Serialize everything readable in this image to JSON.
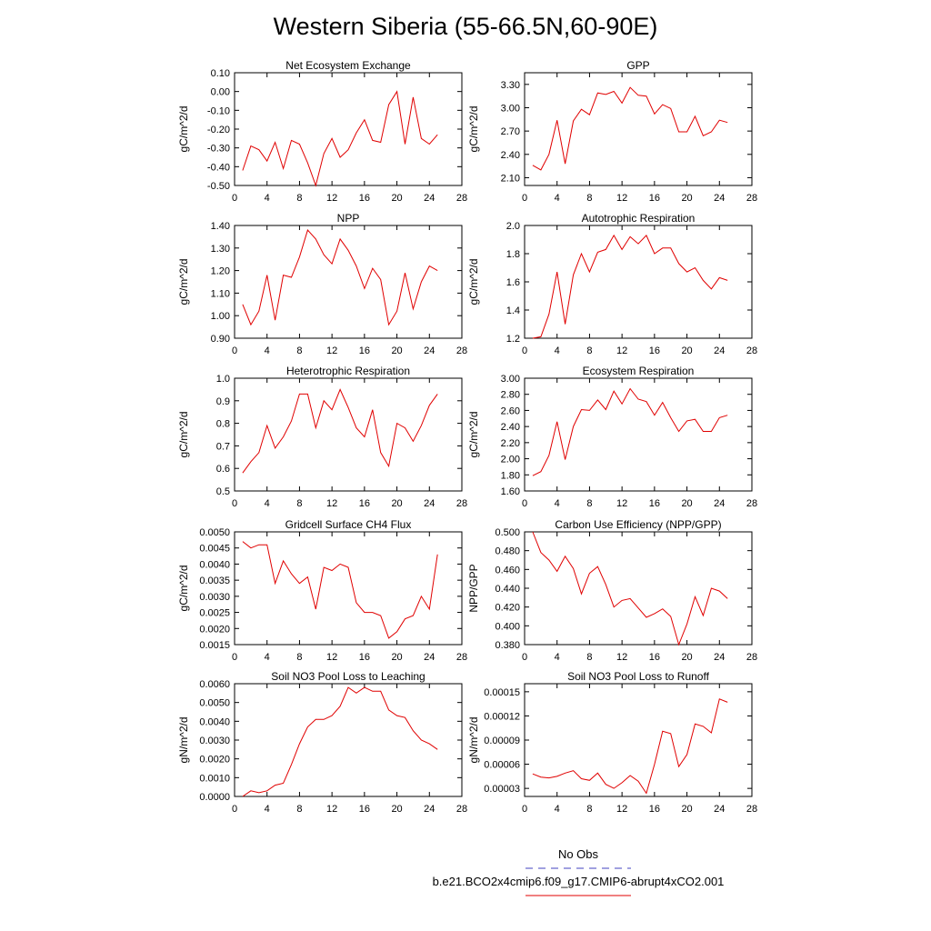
{
  "title": "Western Siberia (55-66.5N,60-90E)",
  "legend": {
    "obs_label": "No Obs",
    "obs_color": "#4040c0",
    "model_label": "b.e21.BCO2x4cmip6.f09_g17.CMIP6-abrupt4xCO2.001",
    "model_color": "#e00000"
  },
  "chart_data": [
    {
      "type": "line",
      "title": "Net Ecosystem Exchange",
      "ylabel": "gC/m^2/d",
      "xlim": [
        0,
        28
      ],
      "xticks": [
        "0",
        "4",
        "8",
        "12",
        "16",
        "20",
        "24",
        "28"
      ],
      "ylim": [
        -0.5,
        0.1
      ],
      "yticks": [
        "0.10",
        "0.00",
        "-0.10",
        "-0.20",
        "-0.30",
        "-0.40",
        "-0.50"
      ],
      "x": [
        1,
        2,
        3,
        4,
        5,
        6,
        7,
        8,
        9,
        10,
        11,
        12,
        13,
        14,
        15,
        16,
        17,
        18,
        19,
        20,
        21,
        22,
        23,
        24,
        25
      ],
      "series": [
        {
          "values": [
            -0.42,
            -0.29,
            -0.31,
            -0.37,
            -0.27,
            -0.41,
            -0.26,
            -0.28,
            -0.38,
            -0.5,
            -0.33,
            -0.25,
            -0.35,
            -0.31,
            -0.22,
            -0.15,
            -0.26,
            -0.27,
            -0.07,
            0.0,
            -0.28,
            -0.03,
            -0.25,
            -0.28,
            -0.23
          ]
        }
      ]
    },
    {
      "type": "line",
      "title": "GPP",
      "ylabel": "gC/m^2/d",
      "xlim": [
        0,
        28
      ],
      "xticks": [
        "0",
        "4",
        "8",
        "12",
        "16",
        "20",
        "24",
        "28"
      ],
      "ylim": [
        2.0,
        3.45
      ],
      "yticks": [
        "3.30",
        "3.00",
        "2.70",
        "2.40",
        "2.10"
      ],
      "x": [
        1,
        2,
        3,
        4,
        5,
        6,
        7,
        8,
        9,
        10,
        11,
        12,
        13,
        14,
        15,
        16,
        17,
        18,
        19,
        20,
        21,
        22,
        23,
        24,
        25
      ],
      "series": [
        {
          "values": [
            2.26,
            2.2,
            2.4,
            2.84,
            2.28,
            2.83,
            2.98,
            2.91,
            3.19,
            3.17,
            3.21,
            3.06,
            3.26,
            3.16,
            3.15,
            2.92,
            3.04,
            2.99,
            2.69,
            2.69,
            2.89,
            2.64,
            2.69,
            2.84,
            2.81
          ]
        }
      ]
    },
    {
      "type": "line",
      "title": "NPP",
      "ylabel": "gC/m^2/d",
      "xlim": [
        0,
        28
      ],
      "xticks": [
        "0",
        "4",
        "8",
        "12",
        "16",
        "20",
        "24",
        "28"
      ],
      "ylim": [
        0.9,
        1.4
      ],
      "yticks": [
        "1.40",
        "1.30",
        "1.20",
        "1.10",
        "1.00",
        "0.90"
      ],
      "x": [
        1,
        2,
        3,
        4,
        5,
        6,
        7,
        8,
        9,
        10,
        11,
        12,
        13,
        14,
        15,
        16,
        17,
        18,
        19,
        20,
        21,
        22,
        23,
        24,
        25
      ],
      "series": [
        {
          "values": [
            1.05,
            0.96,
            1.02,
            1.18,
            0.98,
            1.18,
            1.17,
            1.26,
            1.38,
            1.34,
            1.27,
            1.23,
            1.34,
            1.29,
            1.22,
            1.12,
            1.21,
            1.16,
            0.96,
            1.02,
            1.19,
            1.03,
            1.15,
            1.22,
            1.2
          ]
        }
      ]
    },
    {
      "type": "line",
      "title": "Autotrophic Respiration",
      "ylabel": "gC/m^2/d",
      "xlim": [
        0,
        28
      ],
      "xticks": [
        "0",
        "4",
        "8",
        "12",
        "16",
        "20",
        "24",
        "28"
      ],
      "ylim": [
        1.2,
        2.0
      ],
      "yticks": [
        "2.0",
        "1.8",
        "1.6",
        "1.4",
        "1.2"
      ],
      "x": [
        1,
        2,
        3,
        4,
        5,
        6,
        7,
        8,
        9,
        10,
        11,
        12,
        13,
        14,
        15,
        16,
        17,
        18,
        19,
        20,
        21,
        22,
        23,
        24,
        25
      ],
      "series": [
        {
          "values": [
            1.2,
            1.21,
            1.37,
            1.67,
            1.3,
            1.65,
            1.8,
            1.67,
            1.81,
            1.83,
            1.93,
            1.83,
            1.92,
            1.87,
            1.93,
            1.8,
            1.84,
            1.84,
            1.73,
            1.67,
            1.7,
            1.61,
            1.55,
            1.63,
            1.61
          ]
        }
      ]
    },
    {
      "type": "line",
      "title": "Heterotrophic Respiration",
      "ylabel": "gC/m^2/d",
      "xlim": [
        0,
        28
      ],
      "xticks": [
        "0",
        "4",
        "8",
        "12",
        "16",
        "20",
        "24",
        "28"
      ],
      "ylim": [
        0.5,
        1.0
      ],
      "yticks": [
        "1.0",
        "0.9",
        "0.8",
        "0.7",
        "0.6",
        "0.5"
      ],
      "x": [
        1,
        2,
        3,
        4,
        5,
        6,
        7,
        8,
        9,
        10,
        11,
        12,
        13,
        14,
        15,
        16,
        17,
        18,
        19,
        20,
        21,
        22,
        23,
        24,
        25
      ],
      "series": [
        {
          "values": [
            0.58,
            0.63,
            0.67,
            0.79,
            0.69,
            0.74,
            0.81,
            0.93,
            0.93,
            0.78,
            0.9,
            0.86,
            0.95,
            0.87,
            0.78,
            0.74,
            0.86,
            0.67,
            0.61,
            0.8,
            0.78,
            0.72,
            0.79,
            0.88,
            0.93
          ]
        }
      ]
    },
    {
      "type": "line",
      "title": "Ecosystem Respiration",
      "ylabel": "gC/m^2/d",
      "xlim": [
        0,
        28
      ],
      "xticks": [
        "0",
        "4",
        "8",
        "12",
        "16",
        "20",
        "24",
        "28"
      ],
      "ylim": [
        1.6,
        3.0
      ],
      "yticks": [
        "3.00",
        "2.80",
        "2.60",
        "2.40",
        "2.20",
        "2.00",
        "1.80",
        "1.60"
      ],
      "x": [
        1,
        2,
        3,
        4,
        5,
        6,
        7,
        8,
        9,
        10,
        11,
        12,
        13,
        14,
        15,
        16,
        17,
        18,
        19,
        20,
        21,
        22,
        23,
        24,
        25
      ],
      "series": [
        {
          "values": [
            1.79,
            1.84,
            2.04,
            2.46,
            1.99,
            2.4,
            2.61,
            2.6,
            2.73,
            2.61,
            2.84,
            2.68,
            2.87,
            2.74,
            2.71,
            2.54,
            2.7,
            2.51,
            2.34,
            2.47,
            2.49,
            2.34,
            2.34,
            2.51,
            2.54
          ]
        }
      ]
    },
    {
      "type": "line",
      "title": "Gridcell Surface CH4 Flux",
      "ylabel": "gC/m^2/d",
      "xlim": [
        0,
        28
      ],
      "xticks": [
        "0",
        "4",
        "8",
        "12",
        "16",
        "20",
        "24",
        "28"
      ],
      "ylim": [
        0.0015,
        0.005
      ],
      "yticks": [
        "0.0050",
        "0.0045",
        "0.0040",
        "0.0035",
        "0.0030",
        "0.0025",
        "0.0020",
        "0.0015"
      ],
      "x": [
        1,
        2,
        3,
        4,
        5,
        6,
        7,
        8,
        9,
        10,
        11,
        12,
        13,
        14,
        15,
        16,
        17,
        18,
        19,
        20,
        21,
        22,
        23,
        24,
        25
      ],
      "series": [
        {
          "values": [
            0.0047,
            0.0045,
            0.0046,
            0.0046,
            0.0034,
            0.0041,
            0.0037,
            0.0034,
            0.0036,
            0.0026,
            0.0039,
            0.0038,
            0.004,
            0.0039,
            0.0028,
            0.0025,
            0.0025,
            0.0024,
            0.0017,
            0.0019,
            0.0023,
            0.0024,
            0.003,
            0.0026,
            0.0043
          ]
        }
      ]
    },
    {
      "type": "line",
      "title": "Carbon Use Efficiency (NPP/GPP)",
      "ylabel": "NPP/GPP",
      "xlim": [
        0,
        28
      ],
      "xticks": [
        "0",
        "4",
        "8",
        "12",
        "16",
        "20",
        "24",
        "28"
      ],
      "ylim": [
        0.38,
        0.5
      ],
      "yticks": [
        "0.500",
        "0.480",
        "0.460",
        "0.440",
        "0.420",
        "0.400",
        "0.380"
      ],
      "x": [
        1,
        2,
        3,
        4,
        5,
        6,
        7,
        8,
        9,
        10,
        11,
        12,
        13,
        14,
        15,
        16,
        17,
        18,
        19,
        20,
        21,
        22,
        23,
        24,
        25
      ],
      "series": [
        {
          "values": [
            0.5,
            0.478,
            0.47,
            0.458,
            0.474,
            0.461,
            0.434,
            0.456,
            0.463,
            0.444,
            0.42,
            0.427,
            0.429,
            0.419,
            0.409,
            0.413,
            0.418,
            0.41,
            0.38,
            0.402,
            0.431,
            0.411,
            0.44,
            0.437,
            0.429
          ]
        }
      ]
    },
    {
      "type": "line",
      "title": "Soil NO3 Pool Loss to Leaching",
      "ylabel": "gN/m^2/d",
      "xlim": [
        0,
        28
      ],
      "xticks": [
        "0",
        "4",
        "8",
        "12",
        "16",
        "20",
        "24",
        "28"
      ],
      "ylim": [
        0.0,
        0.006
      ],
      "yticks": [
        "0.0060",
        "0.0050",
        "0.0040",
        "0.0030",
        "0.0020",
        "0.0010",
        "0.0000"
      ],
      "x": [
        1,
        2,
        3,
        4,
        5,
        6,
        7,
        8,
        9,
        10,
        11,
        12,
        13,
        14,
        15,
        16,
        17,
        18,
        19,
        20,
        21,
        22,
        23,
        24,
        25
      ],
      "series": [
        {
          "values": [
            0.0,
            0.0003,
            0.0002,
            0.0003,
            0.0006,
            0.0007,
            0.0017,
            0.0028,
            0.0037,
            0.0041,
            0.0041,
            0.0043,
            0.0048,
            0.0058,
            0.0055,
            0.0058,
            0.0056,
            0.0056,
            0.0046,
            0.0043,
            0.0042,
            0.0035,
            0.003,
            0.0028,
            0.0025
          ]
        }
      ]
    },
    {
      "type": "line",
      "title": "Soil NO3 Pool Loss to Runoff",
      "ylabel": "gN/m^2/d",
      "xlim": [
        0,
        28
      ],
      "xticks": [
        "0",
        "4",
        "8",
        "12",
        "16",
        "20",
        "24",
        "28"
      ],
      "ylim": [
        2e-05,
        0.00016
      ],
      "yticks": [
        "0.00015",
        "0.00012",
        "0.00009",
        "0.00006",
        "0.00003"
      ],
      "x": [
        1,
        2,
        3,
        4,
        5,
        6,
        7,
        8,
        9,
        10,
        11,
        12,
        13,
        14,
        15,
        16,
        17,
        18,
        19,
        20,
        21,
        22,
        23,
        24,
        25
      ],
      "series": [
        {
          "values": [
            4.8e-05,
            4.4e-05,
            4.3e-05,
            4.5e-05,
            4.9e-05,
            5.2e-05,
            4.2e-05,
            4e-05,
            4.9e-05,
            3.5e-05,
            3e-05,
            3.7e-05,
            4.6e-05,
            3.9e-05,
            2.4e-05,
            6e-05,
            0.000101,
            9.8e-05,
            5.7e-05,
            7.2e-05,
            0.00011,
            0.000107,
            9.9e-05,
            0.000141,
            0.000137
          ]
        }
      ]
    }
  ]
}
